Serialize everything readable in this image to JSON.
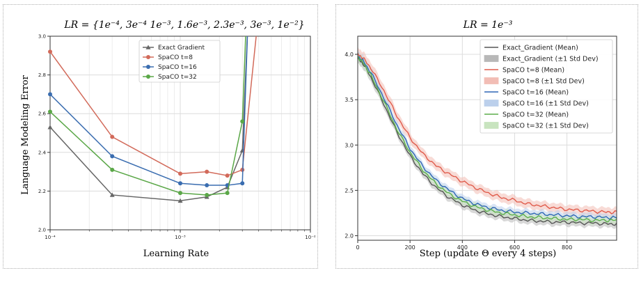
{
  "chart_data": [
    {
      "type": "line",
      "title": "LR = {1e⁻⁴, 3e⁻⁴ 1e⁻³, 1.6e⁻³, 2.3e⁻³, 3e⁻³, 1e⁻²}",
      "xlabel": "Learning Rate",
      "ylabel": "Language Modeling Error",
      "xscale": "log",
      "xlim": [
        0.0001,
        0.01
      ],
      "ylim": [
        2.0,
        3.0
      ],
      "xtick_labels": [
        "10⁻⁴",
        "10⁻³",
        "10⁻²"
      ],
      "ytick_labels": [
        "2.0",
        "2.2",
        "2.4",
        "2.6",
        "2.8",
        "3.0"
      ],
      "grid": true,
      "legend": "top-center",
      "series": [
        {
          "name": "Exact Gradient",
          "color": "#666666",
          "marker": "triangle",
          "x": [
            0.0001,
            0.0003,
            0.001,
            0.0016,
            0.0023,
            0.003,
            0.0033
          ],
          "y": [
            2.53,
            2.18,
            2.15,
            2.17,
            2.22,
            2.41,
            3.05
          ]
        },
        {
          "name": "SpaCO t=8",
          "color": "#d26a5a",
          "marker": "circle",
          "x": [
            0.0001,
            0.0003,
            0.001,
            0.0016,
            0.0023,
            0.003,
            0.0039
          ],
          "y": [
            2.92,
            2.48,
            2.29,
            2.3,
            2.28,
            2.31,
            3.05
          ]
        },
        {
          "name": "SpaCO t=16",
          "color": "#3a6db0",
          "marker": "circle",
          "x": [
            0.0001,
            0.0003,
            0.001,
            0.0016,
            0.0023,
            0.003,
            0.0033
          ],
          "y": [
            2.7,
            2.38,
            2.24,
            2.23,
            2.23,
            2.24,
            3.05
          ]
        },
        {
          "name": "SpaCO t=32",
          "color": "#5aa747",
          "marker": "circle",
          "x": [
            0.0001,
            0.0003,
            0.001,
            0.0016,
            0.0023,
            0.003,
            0.0032
          ],
          "y": [
            2.61,
            2.31,
            2.19,
            2.18,
            2.19,
            2.56,
            3.05
          ]
        }
      ]
    },
    {
      "type": "line",
      "title": "LR = 1e⁻³",
      "xlabel": "Step (update Θ every 4 steps)",
      "ylabel": "",
      "xlim": [
        0,
        990
      ],
      "ylim": [
        1.95,
        4.2
      ],
      "xtick_labels": [
        "0",
        "200",
        "400",
        "600",
        "800"
      ],
      "ytick_labels": [
        "2.0",
        "2.5",
        "3.0",
        "3.5",
        "4.0"
      ],
      "grid": true,
      "legend": "top-right",
      "legend_entries": [
        "Exact_Gradient (Mean)",
        "Exact_Gradient (±1 Std Dev)",
        "SpaCO t=8 (Mean)",
        "SpaCO t=8 (±1 Std Dev)",
        "SpaCO t=16 (Mean)",
        "SpaCO t=16 (±1 Std Dev)",
        "SpaCO t=32 (Mean)",
        "SpaCO t=32 (±1 Std Dev)"
      ],
      "x": [
        0,
        20,
        50,
        100,
        150,
        200,
        250,
        300,
        350,
        400,
        450,
        500,
        550,
        600,
        650,
        700,
        750,
        800,
        850,
        900,
        950,
        990
      ],
      "series": [
        {
          "name": "Exact_Gradient",
          "color": "#555555",
          "band_color": "#b8b8b8",
          "std": 0.04,
          "y": [
            3.95,
            3.9,
            3.75,
            3.45,
            3.14,
            2.88,
            2.68,
            2.53,
            2.42,
            2.34,
            2.28,
            2.24,
            2.21,
            2.19,
            2.17,
            2.16,
            2.15,
            2.15,
            2.14,
            2.14,
            2.13,
            2.13
          ]
        },
        {
          "name": "SpaCO t=8",
          "color": "#e05b4b",
          "band_color": "#f2bdb5",
          "std": 0.05,
          "y": [
            4.0,
            3.96,
            3.85,
            3.6,
            3.32,
            3.08,
            2.9,
            2.77,
            2.68,
            2.6,
            2.53,
            2.47,
            2.42,
            2.39,
            2.35,
            2.33,
            2.31,
            2.29,
            2.28,
            2.27,
            2.26,
            2.26
          ]
        },
        {
          "name": "SpaCO t=16",
          "color": "#2f67b5",
          "band_color": "#bcd0ec",
          "std": 0.04,
          "y": [
            3.98,
            3.93,
            3.8,
            3.52,
            3.22,
            2.96,
            2.76,
            2.61,
            2.5,
            2.41,
            2.35,
            2.31,
            2.28,
            2.26,
            2.25,
            2.24,
            2.23,
            2.22,
            2.21,
            2.21,
            2.2,
            2.2
          ]
        },
        {
          "name": "SpaCO t=32",
          "color": "#5cae4a",
          "band_color": "#c8e4bf",
          "std": 0.04,
          "y": [
            3.97,
            3.91,
            3.77,
            3.48,
            3.17,
            2.92,
            2.72,
            2.57,
            2.46,
            2.38,
            2.32,
            2.28,
            2.25,
            2.23,
            2.21,
            2.2,
            2.19,
            2.18,
            2.18,
            2.17,
            2.17,
            2.17
          ]
        }
      ]
    }
  ]
}
